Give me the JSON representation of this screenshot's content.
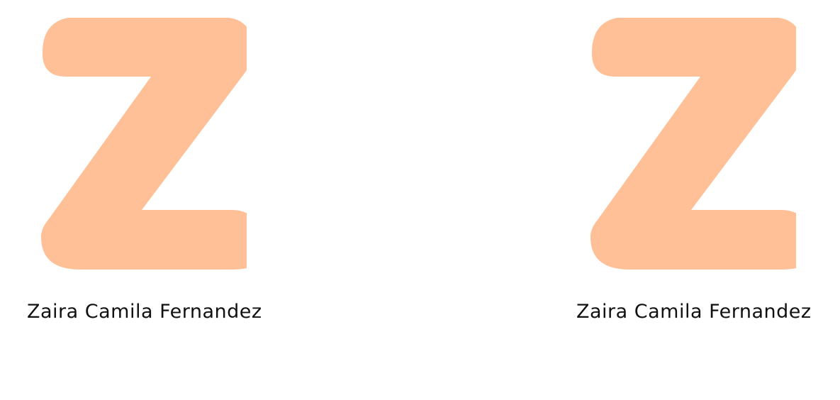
{
  "cards": [
    {
      "letter": "Z",
      "letter_color": "#FFC097",
      "name": "Zaira Camila Fernandez",
      "icon": "letter-z-icon"
    },
    {
      "letter": "Z",
      "letter_color": "#FFC097",
      "name": "Zaira Camila Fernandez",
      "icon": "letter-z-icon"
    }
  ]
}
